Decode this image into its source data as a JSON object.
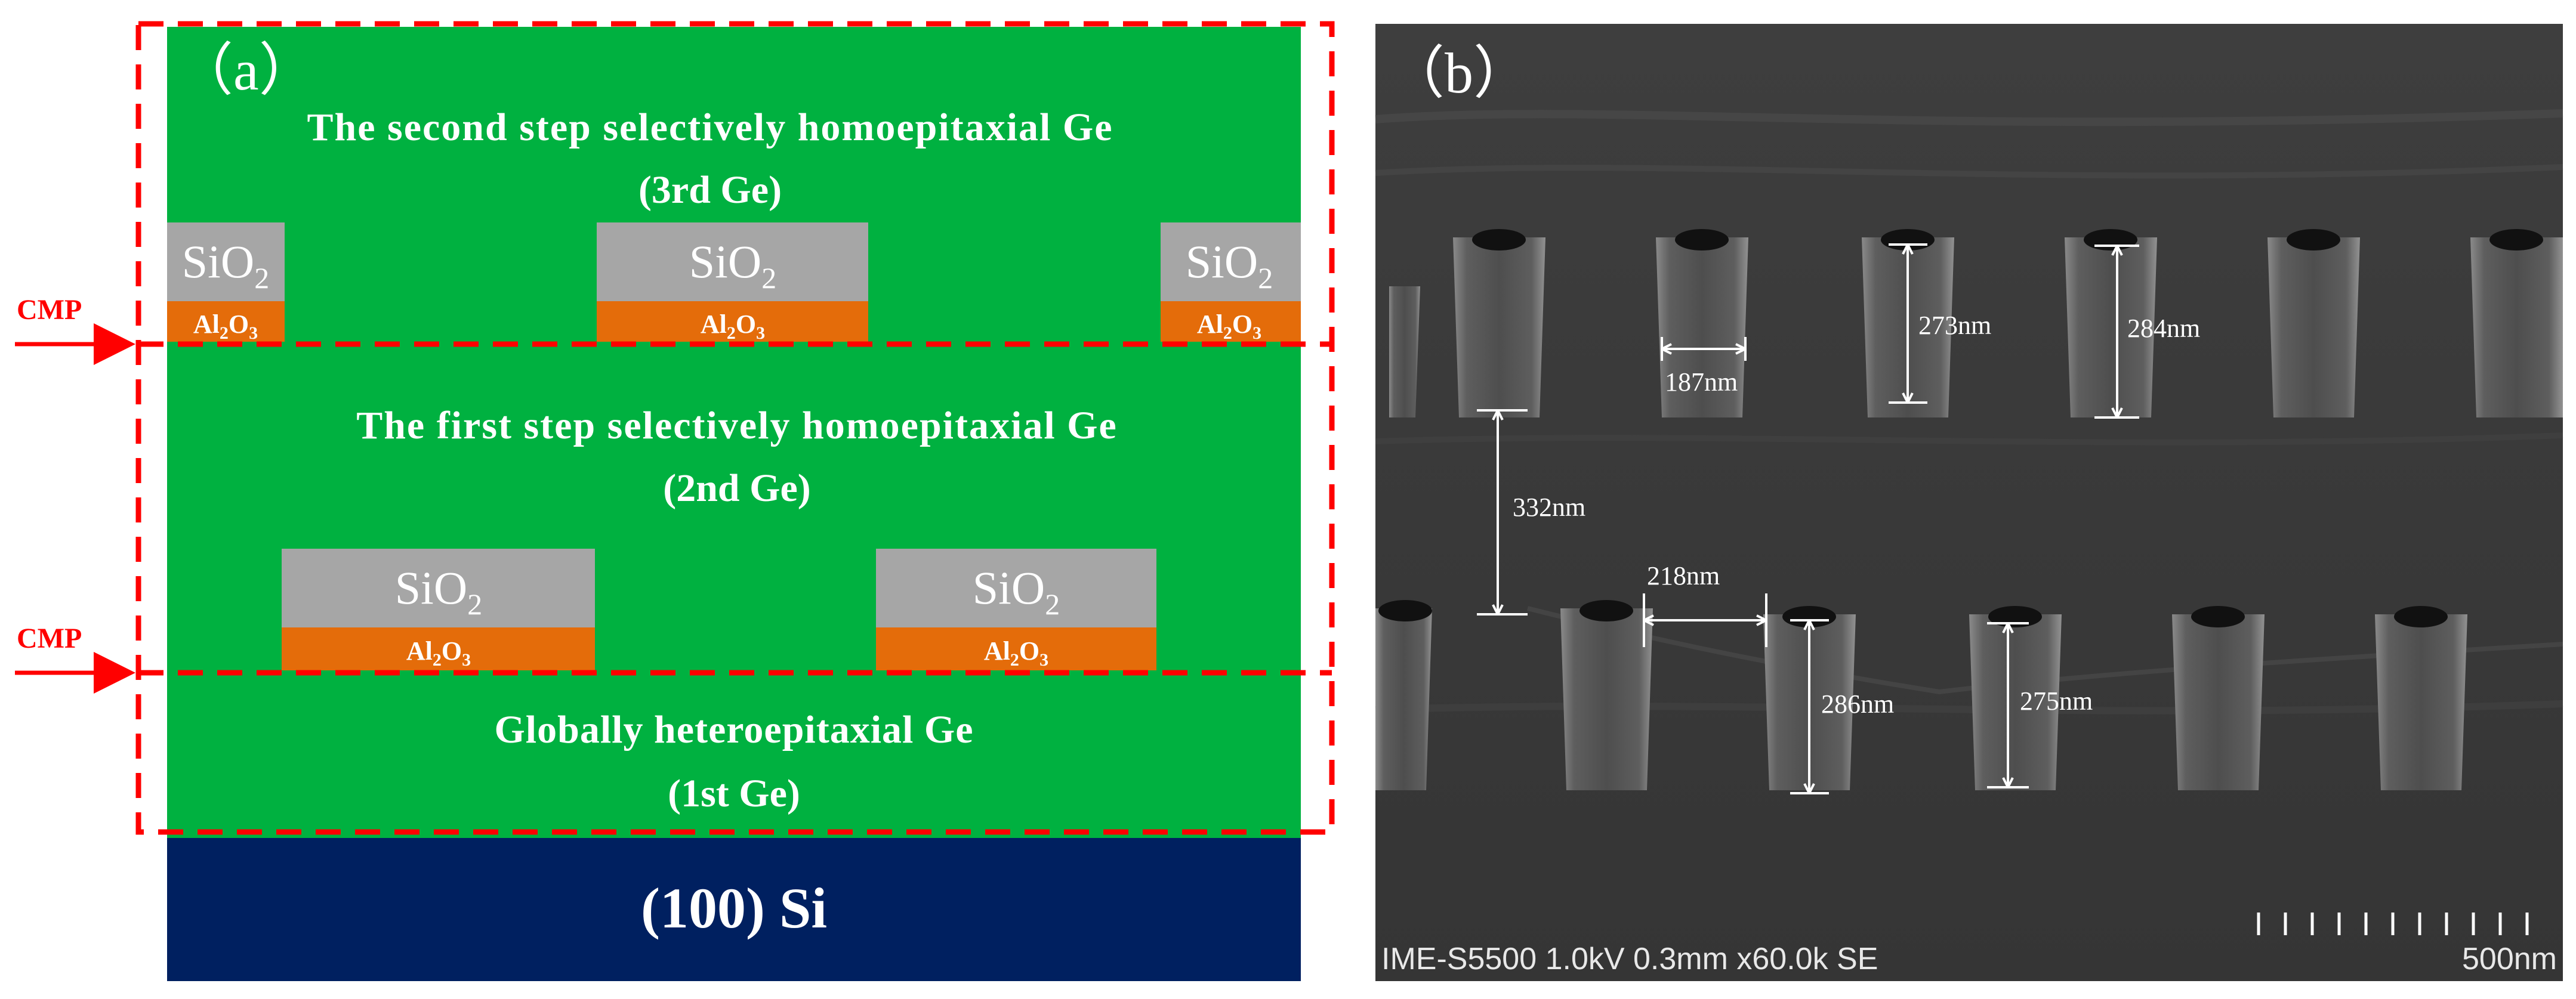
{
  "panel_a": {
    "label": "（a）",
    "layers": {
      "third_ge": {
        "line1": "The second step selectively homoepitaxial Ge",
        "line2": "(3rd Ge)"
      },
      "second_ge": {
        "line1": "The first step selectively homoepitaxial Ge",
        "line2": "(2nd Ge)"
      },
      "first_ge": {
        "line1": "Globally heteroepitaxial Ge",
        "line2": "(1st Ge)"
      },
      "substrate": "(100) Si"
    },
    "oxide": {
      "sio2_base": "SiO",
      "al2o3_base1": "Al",
      "al2o3_base2": "O",
      "sub2": "2",
      "sub3": "3"
    },
    "cmp_top": "CMP",
    "cmp_bottom": "CMP",
    "colors": {
      "ge": "#00b140",
      "si": "#002060",
      "sio2": "#a6a6a6",
      "al2o3": "#e46c0a",
      "cmp": "#ff0000"
    }
  },
  "panel_b": {
    "label": "（b）",
    "measurements": {
      "width_top": "187nm",
      "height_top_1": "273nm",
      "height_top_2": "284nm",
      "gap_vertical": "332nm",
      "gap_horizontal": "218nm",
      "height_bottom_1": "286nm",
      "height_bottom_2": "275nm"
    },
    "info_bar": "IME-S5500 1.0kV 0.3mm x60.0k SE",
    "scale_bar": "500nm"
  }
}
